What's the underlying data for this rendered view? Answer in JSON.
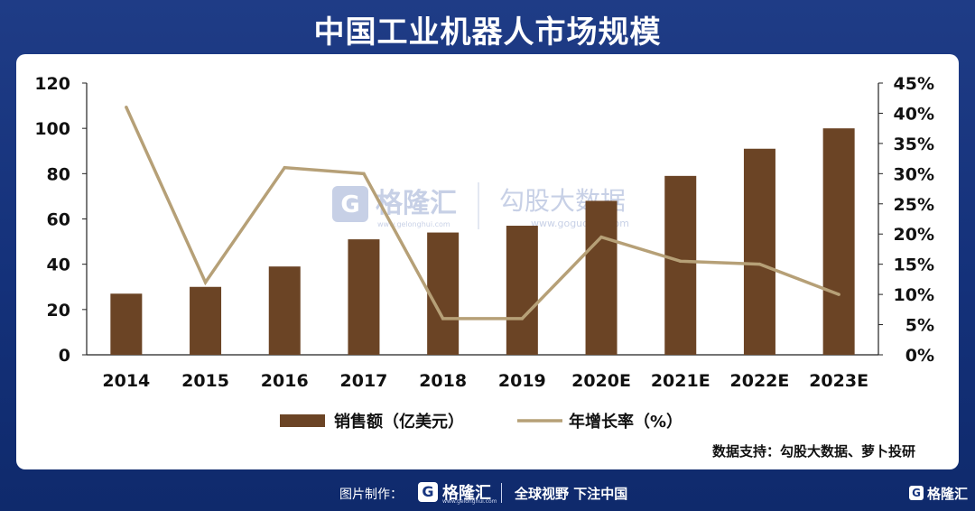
{
  "title": "中国工业机器人市场规模",
  "source": "数据支持：勾股大数据、萝卜投研",
  "watermark": {
    "left_logo": "格隆汇",
    "left_url": "www.gelonghui.com",
    "right_logo": "勾股大数据",
    "right_url": "www.gogudata.com"
  },
  "footer": {
    "label": "图片制作：",
    "logo_mark": "G",
    "logo_text": "格隆汇",
    "logo_url": "www.gelonghui.com",
    "slogan": "全球视野 下注中国",
    "corner_mark": "G",
    "corner_text": "格隆汇"
  },
  "chart_data": {
    "type": "bar",
    "categories": [
      "2014",
      "2015",
      "2016",
      "2017",
      "2018",
      "2019",
      "2020E",
      "2021E",
      "2022E",
      "2023E"
    ],
    "series": [
      {
        "name": "销售额（亿美元）",
        "type": "bar",
        "axis": "left",
        "color": "#6b4425",
        "values": [
          27,
          30,
          39,
          51,
          54,
          57,
          68,
          79,
          91,
          100
        ]
      },
      {
        "name": "年增长率（%）",
        "type": "line",
        "axis": "right",
        "color": "#b6a077",
        "values": [
          41,
          12,
          31,
          30,
          6,
          6,
          19.5,
          15.5,
          15,
          10
        ]
      }
    ],
    "yleft": {
      "min": 0,
      "max": 120,
      "ticks": [
        "0",
        "20",
        "40",
        "60",
        "80",
        "100",
        "120"
      ]
    },
    "yright": {
      "min": 0,
      "max": 45,
      "ticks": [
        "0%",
        "5%",
        "10%",
        "15%",
        "20%",
        "25%",
        "30%",
        "35%",
        "40%",
        "45%"
      ]
    },
    "grid": false,
    "legend": "bottom"
  }
}
